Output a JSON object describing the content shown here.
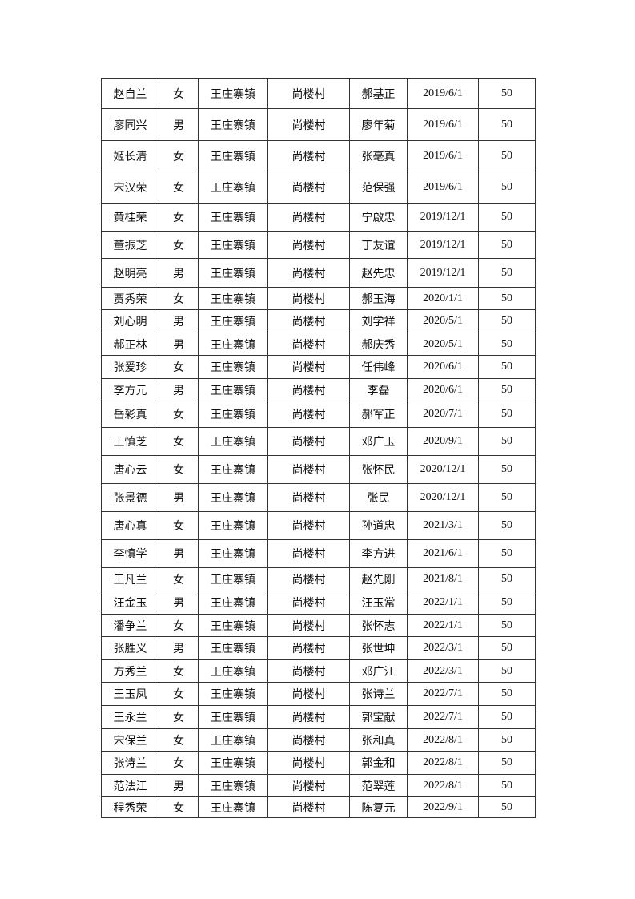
{
  "rows": [
    [
      "赵自兰",
      "女",
      "王庄寨镇",
      "尚楼村",
      "郝基正",
      "2019/6/1",
      "50"
    ],
    [
      "廖同兴",
      "男",
      "王庄寨镇",
      "尚楼村",
      "廖年菊",
      "2019/6/1",
      "50"
    ],
    [
      "姬长清",
      "女",
      "王庄寨镇",
      "尚楼村",
      "张毫真",
      "2019/6/1",
      "50"
    ],
    [
      "宋汉荣",
      "女",
      "王庄寨镇",
      "尚楼村",
      "范保强",
      "2019/6/1",
      "50"
    ],
    [
      "黄桂荣",
      "女",
      "王庄寨镇",
      "尚楼村",
      "宁啟忠",
      "2019/12/1",
      "50"
    ],
    [
      "董振芝",
      "女",
      "王庄寨镇",
      "尚楼村",
      "丁友谊",
      "2019/12/1",
      "50"
    ],
    [
      "赵明亮",
      "男",
      "王庄寨镇",
      "尚楼村",
      "赵先忠",
      "2019/12/1",
      "50"
    ],
    [
      "贾秀荣",
      "女",
      "王庄寨镇",
      "尚楼村",
      "郝玉海",
      "2020/1/1",
      "50"
    ],
    [
      "刘心明",
      "男",
      "王庄寨镇",
      "尚楼村",
      "刘学祥",
      "2020/5/1",
      "50"
    ],
    [
      "郝正林",
      "男",
      "王庄寨镇",
      "尚楼村",
      "郝庆秀",
      "2020/5/1",
      "50"
    ],
    [
      "张爱珍",
      "女",
      "王庄寨镇",
      "尚楼村",
      "任伟峰",
      "2020/6/1",
      "50"
    ],
    [
      "李方元",
      "男",
      "王庄寨镇",
      "尚楼村",
      "李磊",
      "2020/6/1",
      "50"
    ],
    [
      "岳彩真",
      "女",
      "王庄寨镇",
      "尚楼村",
      "郝军正",
      "2020/7/1",
      "50"
    ],
    [
      "王慎芝",
      "女",
      "王庄寨镇",
      "尚楼村",
      "邓广玉",
      "2020/9/1",
      "50"
    ],
    [
      "唐心云",
      "女",
      "王庄寨镇",
      "尚楼村",
      "张怀民",
      "2020/12/1",
      "50"
    ],
    [
      "张景德",
      "男",
      "王庄寨镇",
      "尚楼村",
      "张民",
      "2020/12/1",
      "50"
    ],
    [
      "唐心真",
      "女",
      "王庄寨镇",
      "尚楼村",
      "孙道忠",
      "2021/3/1",
      "50"
    ],
    [
      "李慎学",
      "男",
      "王庄寨镇",
      "尚楼村",
      "李方进",
      "2021/6/1",
      "50"
    ],
    [
      "王凡兰",
      "女",
      "王庄寨镇",
      "尚楼村",
      "赵先刚",
      "2021/8/1",
      "50"
    ],
    [
      "汪金玉",
      "男",
      "王庄寨镇",
      "尚楼村",
      "汪玉常",
      "2022/1/1",
      "50"
    ],
    [
      "潘争兰",
      "女",
      "王庄寨镇",
      "尚楼村",
      "张怀志",
      "2022/1/1",
      "50"
    ],
    [
      "张胜义",
      "男",
      "王庄寨镇",
      "尚楼村",
      "张世坤",
      "2022/3/1",
      "50"
    ],
    [
      "方秀兰",
      "女",
      "王庄寨镇",
      "尚楼村",
      "邓广江",
      "2022/3/1",
      "50"
    ],
    [
      "王玉凤",
      "女",
      "王庄寨镇",
      "尚楼村",
      "张诗兰",
      "2022/7/1",
      "50"
    ],
    [
      "王永兰",
      "女",
      "王庄寨镇",
      "尚楼村",
      "郭宝献",
      "2022/7/1",
      "50"
    ],
    [
      "宋保兰",
      "女",
      "王庄寨镇",
      "尚楼村",
      "张和真",
      "2022/8/1",
      "50"
    ],
    [
      "张诗兰",
      "女",
      "王庄寨镇",
      "尚楼村",
      "郭金和",
      "2022/8/1",
      "50"
    ],
    [
      "范法江",
      "男",
      "王庄寨镇",
      "尚楼村",
      "范翠莲",
      "2022/8/1",
      "50"
    ],
    [
      "程秀荣",
      "女",
      "王庄寨镇",
      "尚楼村",
      "陈复元",
      "2022/9/1",
      "50"
    ]
  ]
}
